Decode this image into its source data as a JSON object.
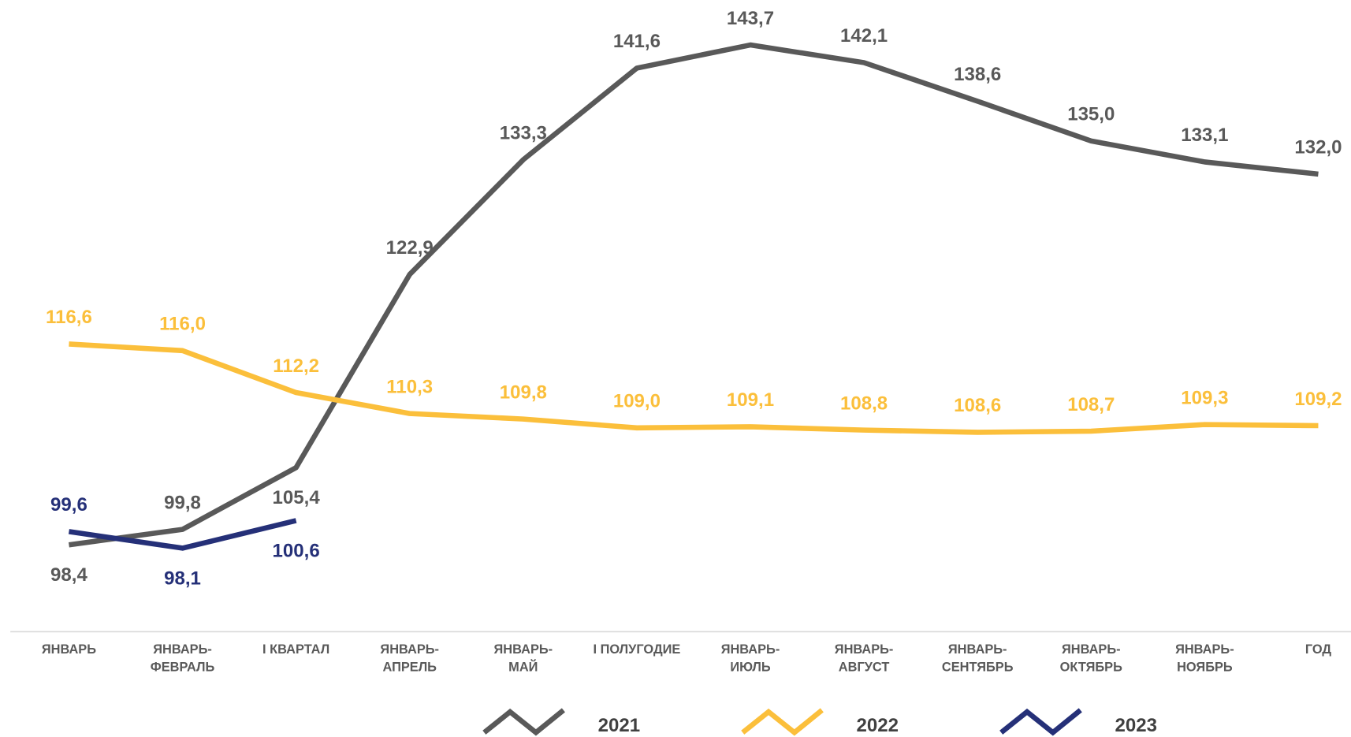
{
  "chart_data": {
    "type": "line",
    "categories": [
      "ЯНВАРЬ",
      "ЯНВАРЬ-ФЕВРАЛЬ",
      "I КВАРТАЛ",
      "ЯНВАРЬ-АПРЕЛЬ",
      "ЯНВАРЬ-МАЙ",
      "I ПОЛУГОДИЕ",
      "ЯНВАРЬ-ИЮЛЬ",
      "ЯНВАРЬ-АВГУСТ",
      "ЯНВАРЬ-СЕНТЯБРЬ",
      "ЯНВАРЬ-ОКТЯБРЬ",
      "ЯНВАРЬ-НОЯБРЬ",
      "ГОД"
    ],
    "series": [
      {
        "name": "2021",
        "color": "#595959",
        "values": [
          98.4,
          99.8,
          105.4,
          122.9,
          133.3,
          141.6,
          143.7,
          142.1,
          138.6,
          135.0,
          133.1,
          132.0
        ],
        "value_labels": [
          "98,4",
          "99,8",
          "105,4",
          "122,9",
          "133,3",
          "141,6",
          "143,7",
          "142,1",
          "138,6",
          "135,0",
          "133,1",
          "132,0"
        ]
      },
      {
        "name": "2022",
        "color": "#fbbf3b",
        "values": [
          116.6,
          116.0,
          112.2,
          110.3,
          109.8,
          109.0,
          109.1,
          108.8,
          108.6,
          108.7,
          109.3,
          109.2
        ],
        "value_labels": [
          "116,6",
          "116,0",
          "112,2",
          "110,3",
          "109,8",
          "109,0",
          "109,1",
          "108,8",
          "108,6",
          "108,7",
          "109,3",
          "109,2"
        ]
      },
      {
        "name": "2023",
        "color": "#253078",
        "values": [
          99.6,
          98.1,
          100.6,
          null,
          null,
          null,
          null,
          null,
          null,
          null,
          null,
          null
        ],
        "value_labels": [
          "99,6",
          "98,1",
          "100,6",
          null,
          null,
          null,
          null,
          null,
          null,
          null,
          null,
          null
        ]
      }
    ],
    "legend": "bottom"
  }
}
